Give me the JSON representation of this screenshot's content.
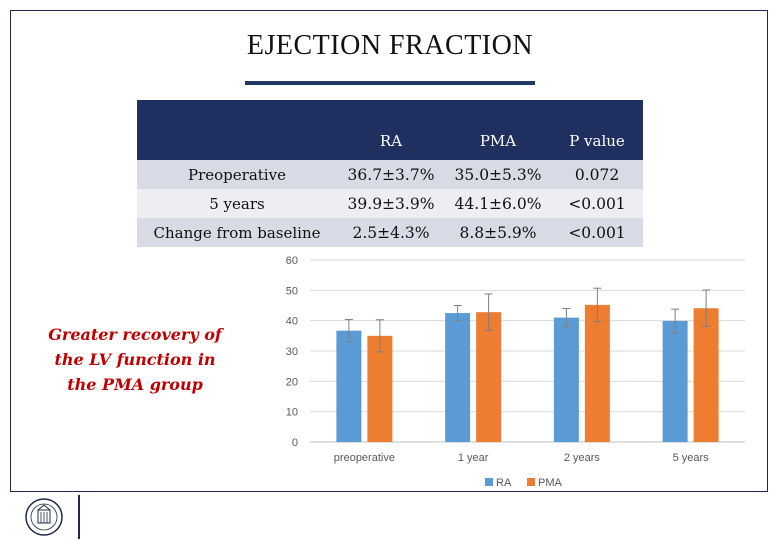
{
  "slide": {
    "title": "EJECTION FRACTION",
    "note_lines": [
      "Greater recovery of",
      "the LV function in",
      "the PMA group"
    ]
  },
  "table": {
    "headers": [
      "",
      "RA",
      "PMA",
      "P value"
    ],
    "rows": [
      [
        "Preoperative",
        "36.7±3.7%",
        "35.0±5.3%",
        "0.072"
      ],
      [
        "5 years",
        "39.9±3.9%",
        "44.1±6.0%",
        "<0.001"
      ],
      [
        "Change from baseline",
        "2.5±4.3%",
        "8.8±5.9%",
        "<0.001"
      ]
    ]
  },
  "chart_data": {
    "type": "bar",
    "title": "",
    "xlabel": "",
    "ylabel": "",
    "categories": [
      "preoperative",
      "1 year",
      "2 years",
      "5 years"
    ],
    "series": [
      {
        "name": "RA",
        "color": "#5b9bd5",
        "values": [
          36.7,
          42.5,
          41.0,
          39.9
        ],
        "errors": [
          3.7,
          2.5,
          3.0,
          3.9
        ]
      },
      {
        "name": "PMA",
        "color": "#ed7d31",
        "values": [
          35.0,
          42.8,
          45.2,
          44.1
        ],
        "errors": [
          5.3,
          6.0,
          5.5,
          6.0
        ]
      }
    ],
    "ylim": [
      0,
      60
    ],
    "yticks": [
      0,
      10,
      20,
      30,
      40,
      50,
      60
    ],
    "grid": true,
    "legend": "bottom"
  },
  "colors": {
    "header_bg": "#1f2f5f",
    "accent_red": "#c00000",
    "title_rule": "#1f3864"
  }
}
